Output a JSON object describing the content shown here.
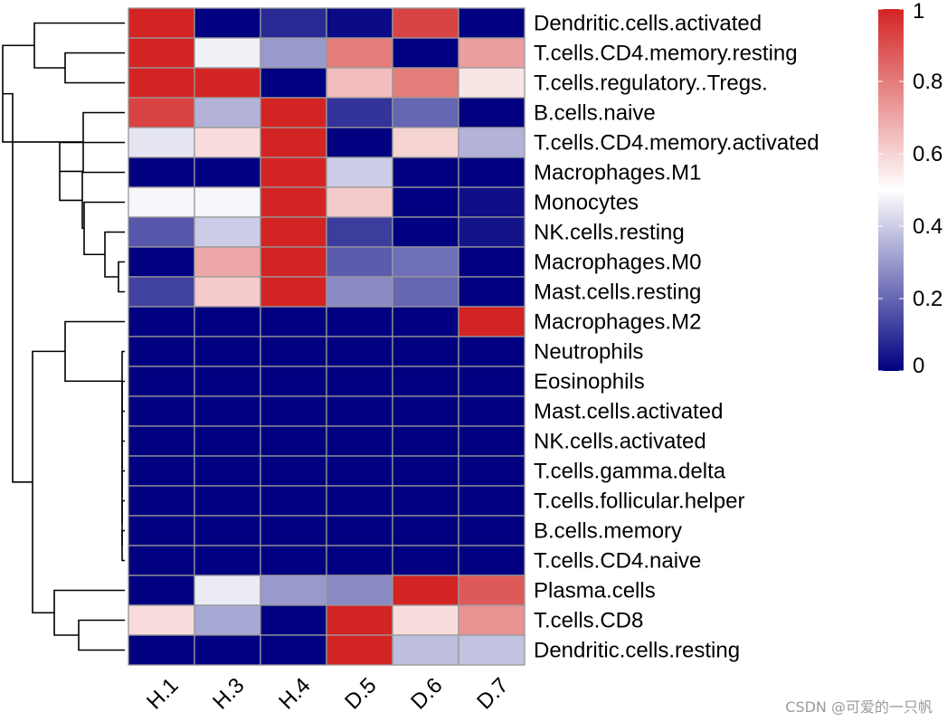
{
  "chart_data": {
    "type": "heatmap",
    "title": "",
    "columns": [
      "H.1",
      "H.3",
      "H.4",
      "D.5",
      "D.6",
      "D.7"
    ],
    "rows": [
      "Dendritic.cells.activated",
      "T.cells.CD4.memory.resting",
      "T.cells.regulatory..Tregs.",
      "B.cells.naive",
      "T.cells.CD4.memory.activated",
      "Macrophages.M1",
      "Monocytes",
      "NK.cells.resting",
      "Macrophages.M0",
      "Mast.cells.resting",
      "Macrophages.M2",
      "Neutrophils",
      "Eosinophils",
      "Mast.cells.activated",
      "NK.cells.activated",
      "T.cells.gamma.delta",
      "T.cells.follicular.helper",
      "B.cells.memory",
      "T.cells.CD4.naive",
      "Plasma.cells",
      "T.cells.CD8",
      "Dendritic.cells.resting"
    ],
    "values": [
      [
        1.0,
        0.0,
        0.08,
        0.02,
        0.93,
        0.0
      ],
      [
        1.0,
        0.47,
        0.3,
        0.8,
        0.0,
        0.72
      ],
      [
        1.0,
        1.0,
        0.0,
        0.65,
        0.8,
        0.56
      ],
      [
        0.93,
        0.35,
        1.0,
        0.1,
        0.2,
        0.0
      ],
      [
        0.45,
        0.58,
        1.0,
        0.0,
        0.6,
        0.35
      ],
      [
        0.0,
        0.0,
        1.0,
        0.4,
        0.0,
        0.0
      ],
      [
        0.48,
        0.48,
        1.0,
        0.62,
        0.0,
        0.03
      ],
      [
        0.17,
        0.4,
        1.0,
        0.12,
        0.0,
        0.04
      ],
      [
        0.0,
        0.7,
        1.0,
        0.18,
        0.22,
        0.0
      ],
      [
        0.13,
        0.62,
        1.0,
        0.27,
        0.2,
        0.0
      ],
      [
        0.0,
        0.0,
        0.0,
        0.0,
        0.0,
        1.0
      ],
      [
        0.0,
        0.0,
        0.0,
        0.0,
        0.0,
        0.0
      ],
      [
        0.0,
        0.0,
        0.0,
        0.0,
        0.0,
        0.0
      ],
      [
        0.0,
        0.0,
        0.0,
        0.0,
        0.0,
        0.0
      ],
      [
        0.0,
        0.0,
        0.0,
        0.0,
        0.0,
        0.0
      ],
      [
        0.0,
        0.0,
        0.0,
        0.0,
        0.0,
        0.0
      ],
      [
        0.0,
        0.0,
        0.0,
        0.0,
        0.0,
        0.0
      ],
      [
        0.0,
        0.0,
        0.0,
        0.0,
        0.0,
        0.0
      ],
      [
        0.0,
        0.0,
        0.0,
        0.0,
        0.0,
        0.0
      ],
      [
        0.0,
        0.46,
        0.3,
        0.27,
        1.0,
        0.88
      ],
      [
        0.58,
        0.33,
        0.0,
        1.0,
        0.58,
        0.75
      ],
      [
        0.0,
        0.0,
        0.0,
        1.0,
        0.37,
        0.38
      ]
    ],
    "value_range": [
      0,
      1
    ],
    "color_scale": {
      "low": "#000080",
      "mid": "#ffffff",
      "high": "#d32424"
    },
    "cell_border_color": "#999999",
    "legend": {
      "ticks": [
        0,
        0.2,
        0.4,
        0.6,
        0.8,
        1
      ],
      "tick_labels": [
        "0",
        "0.2",
        "0.4",
        "0.6",
        "0.8",
        "1"
      ],
      "placement": "top-right"
    },
    "row_dendrogram": true,
    "watermark": "CSDN @可爱的一只帆"
  }
}
